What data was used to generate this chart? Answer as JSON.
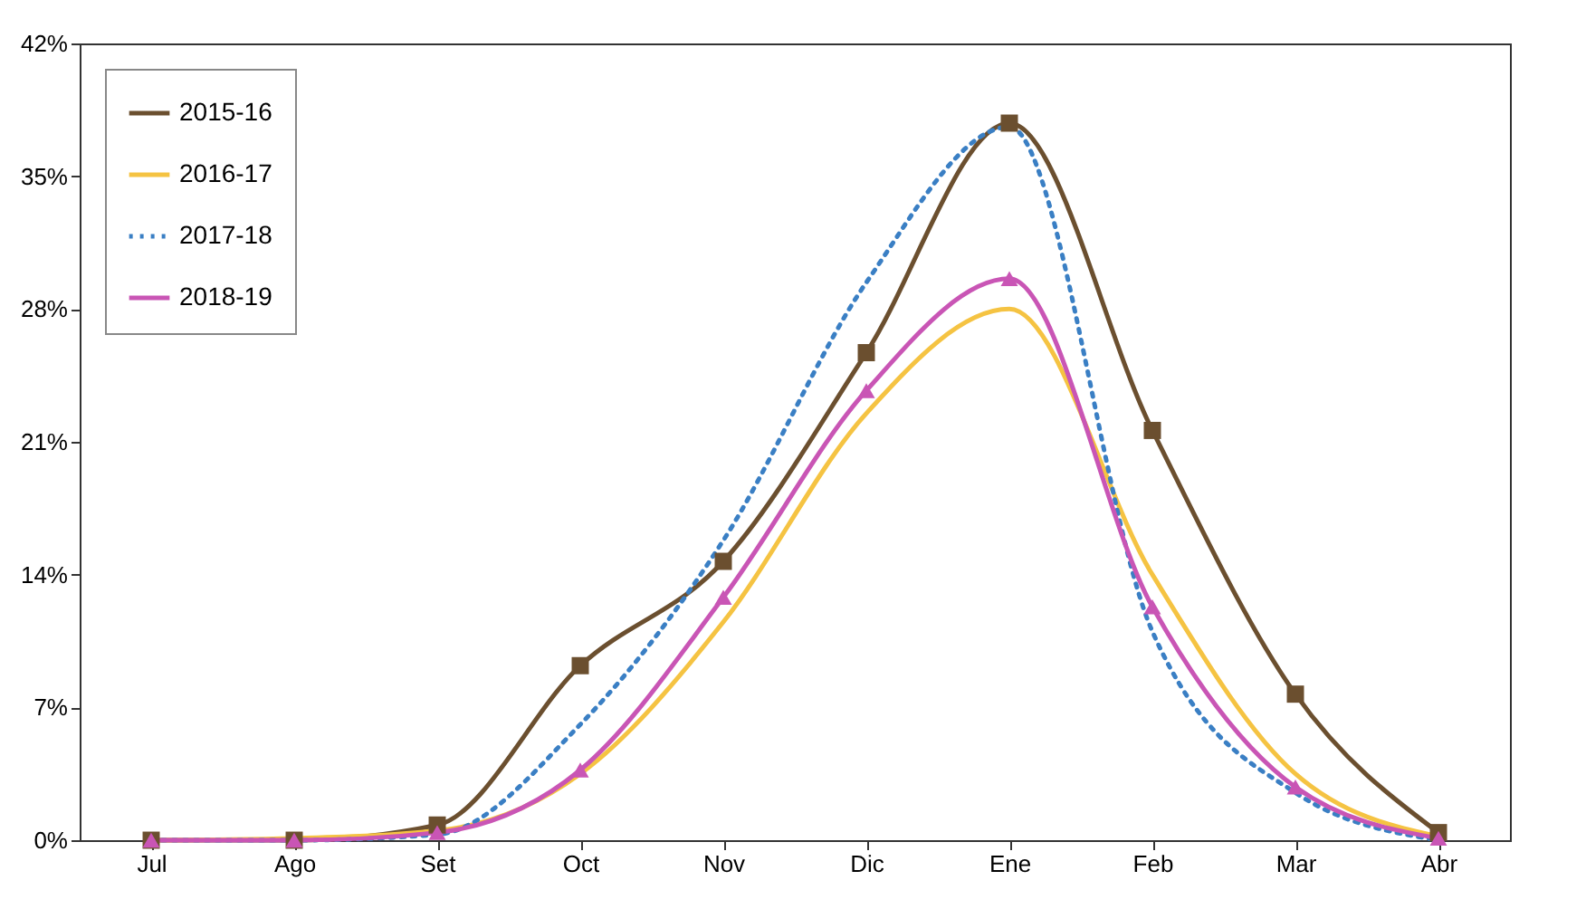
{
  "chart_data": {
    "type": "line",
    "categories": [
      "Jul",
      "Ago",
      "Set",
      "Oct",
      "Nov",
      "Dic",
      "Ene",
      "Feb",
      "Mar",
      "Abr"
    ],
    "ylim": [
      0,
      42
    ],
    "yticks": [
      {
        "value": 0,
        "label": "0%"
      },
      {
        "value": 7,
        "label": "7%"
      },
      {
        "value": 14,
        "label": "14%"
      },
      {
        "value": 21,
        "label": "21%"
      },
      {
        "value": 28,
        "label": "28%"
      },
      {
        "value": 35,
        "label": "35%"
      },
      {
        "value": 42,
        "label": "42%"
      }
    ],
    "grid": false,
    "legend": "top left",
    "series": [
      {
        "name": "2015-16",
        "color": "#6b4f2f",
        "marker": "square",
        "line_style": "solid",
        "values": [
          0,
          0,
          0.8,
          9.2,
          14.7,
          25.7,
          37.8,
          21.6,
          7.7,
          0.4
        ]
      },
      {
        "name": "2016-17",
        "color": "#f5c342",
        "marker": "none",
        "line_style": "solid",
        "values": [
          0,
          0.1,
          0.5,
          3.5,
          11.5,
          22.5,
          28,
          14,
          3.5,
          0.2
        ]
      },
      {
        "name": "2017-18",
        "color": "#3a7fc4",
        "marker": "none",
        "line_style": "dotted",
        "values": [
          0,
          0,
          0.3,
          6.1,
          15.8,
          29.4,
          37.6,
          11,
          2.5,
          0
        ]
      },
      {
        "name": "2018-19",
        "color": "#c955b5",
        "marker": "triangle",
        "line_style": "solid",
        "values": [
          0,
          0,
          0.4,
          3.7,
          12.8,
          23.7,
          29.6,
          12.3,
          2.8,
          0.1
        ]
      }
    ]
  }
}
